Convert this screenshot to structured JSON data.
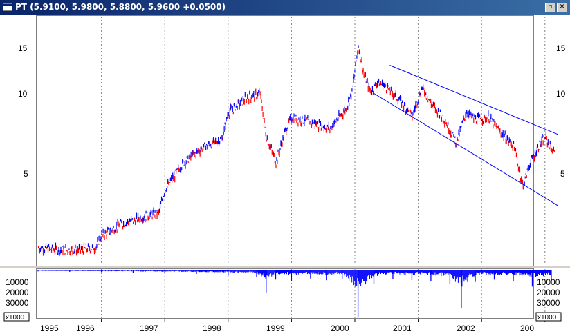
{
  "window": {
    "title": "PT (5.9100, 5.9800, 5.8800, 5.9600 +0.0500)",
    "minimize_glyph": "▫",
    "close_glyph": "✕"
  },
  "price_axis": {
    "ticks": [
      "15",
      "10",
      "5"
    ],
    "scale": "log"
  },
  "volume_axis": {
    "ticks": [
      "10000",
      "20000",
      "30000"
    ],
    "unit_label": "x1000"
  },
  "date_axis": {
    "labels": [
      "1995",
      "1996",
      "1997",
      "1998",
      "1999",
      "2000",
      "2001",
      "2002",
      "200"
    ]
  },
  "colors": {
    "up_bar": "#0000ff",
    "down_bar": "#ff0000",
    "channel": "#0000ff",
    "volume": "#0000ff",
    "grid": "#808080",
    "title_bar": "#0a246a"
  },
  "chart_data": [
    {
      "type": "line",
      "name": "price",
      "ylim": [
        2.2,
        21
      ],
      "y_scale": "log",
      "x": [
        1995.0,
        1995.3,
        1995.6,
        1995.9,
        1996.0,
        1996.3,
        1996.6,
        1996.9,
        1997.0,
        1997.3,
        1997.6,
        1997.9,
        1998.0,
        1998.3,
        1998.5,
        1998.6,
        1998.75,
        1998.9,
        1999.0,
        1999.3,
        1999.6,
        1999.85,
        1999.95,
        2000.05,
        2000.15,
        2000.25,
        2000.35,
        2000.5,
        2000.7,
        2000.9,
        2001.05,
        2001.2,
        2001.4,
        2001.6,
        2001.75,
        2001.9,
        2002.1,
        2002.3,
        2002.5,
        2002.65,
        2002.75,
        2002.9,
        2003.0,
        2003.15
      ],
      "values": [
        2.6,
        2.55,
        2.55,
        2.6,
        2.9,
        3.2,
        3.4,
        3.55,
        4.4,
        5.6,
        6.4,
        6.9,
        8.8,
        10.0,
        10.4,
        7.0,
        5.6,
        7.5,
        8.4,
        8.0,
        7.6,
        9.0,
        10.5,
        16.0,
        12.0,
        10.5,
        11.5,
        11.0,
        9.8,
        8.5,
        11.0,
        9.5,
        8.3,
        6.7,
        8.8,
        8.2,
        8.4,
        7.3,
        6.5,
        4.5,
        5.5,
        6.5,
        7.0,
        6.0
      ]
    },
    {
      "type": "bar",
      "name": "volume",
      "ylim": [
        0,
        42000
      ],
      "x": [
        1995.0,
        1995.5,
        1996.0,
        1996.5,
        1997.0,
        1997.5,
        1998.0,
        1998.45,
        1998.6,
        1998.75,
        1999.0,
        1999.3,
        1999.55,
        1999.8,
        2000.05,
        2000.3,
        2000.6,
        2000.9,
        2001.2,
        2001.5,
        2001.68,
        2001.9,
        2002.2,
        2002.5,
        2002.8,
        2003.1
      ],
      "values": [
        800,
        1200,
        1500,
        1800,
        2500,
        3000,
        4500,
        5500,
        19000,
        8000,
        9000,
        7000,
        8500,
        7500,
        41000,
        12000,
        7500,
        8500,
        9500,
        12000,
        33000,
        10000,
        8000,
        9000,
        14000,
        9500
      ]
    },
    {
      "type": "line",
      "name": "trend-channel-upper",
      "x": [
        2000.55,
        2003.2
      ],
      "values": [
        13.4,
        7.2
      ]
    },
    {
      "type": "line",
      "name": "trend-channel-lower",
      "x": [
        2000.3,
        2003.2
      ],
      "values": [
        10.4,
        3.8
      ]
    }
  ]
}
